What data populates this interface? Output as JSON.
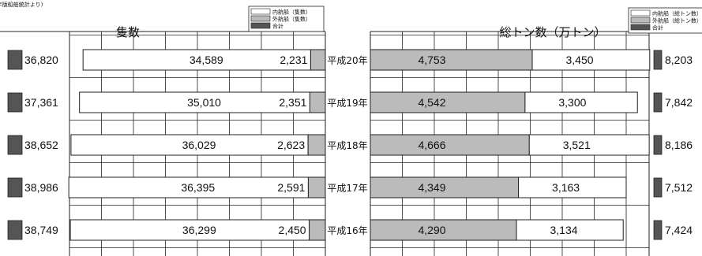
{
  "header": {
    "caption": "(各年版船舶統計より)"
  },
  "chart_data": [
    {
      "type": "bar",
      "title": "隻数",
      "legend": [
        "内航船（隻数）",
        "外航船（隻数）",
        "合計"
      ],
      "categories": [
        "平成20年",
        "平成19年",
        "平成18年",
        "平成17年",
        "平成16年"
      ],
      "series": [
        {
          "name": "内航船（隻数）",
          "values": [
            34589,
            35010,
            36029,
            36395,
            36299
          ],
          "color": "#ffffff"
        },
        {
          "name": "外航船（隻数）",
          "values": [
            2231,
            2351,
            2623,
            2591,
            2450
          ],
          "color": "#bbbbbb"
        },
        {
          "name": "合計",
          "values": [
            36820,
            37361,
            38652,
            38986,
            38749
          ],
          "color": "#555555"
        }
      ],
      "labels": {
        "domestic": [
          "34,589",
          "35,010",
          "36,029",
          "36,395",
          "36,299"
        ],
        "foreign": [
          "2,231",
          "2,351",
          "2,623",
          "2,591",
          "2,450"
        ],
        "total": [
          "36,820",
          "37,361",
          "38,652",
          "38,986",
          "38,749"
        ]
      }
    },
    {
      "type": "bar",
      "title": "総トン数（万トン）",
      "legend": [
        "内航船（総トン数）",
        "外航船（総トン数）",
        "合計"
      ],
      "categories": [
        "平成20年",
        "平成19年",
        "平成18年",
        "平成17年",
        "平成16年"
      ],
      "series": [
        {
          "name": "外航船（総トン数）",
          "values": [
            4753,
            4542,
            4666,
            4349,
            4290
          ],
          "color": "#bbbbbb"
        },
        {
          "name": "内航船（総トン数）",
          "values": [
            3450,
            3300,
            3521,
            3163,
            3134
          ],
          "color": "#ffffff"
        },
        {
          "name": "合計",
          "values": [
            8203,
            7842,
            8186,
            7512,
            7424
          ],
          "color": "#555555"
        }
      ],
      "labels": {
        "foreign": [
          "4,753",
          "4,542",
          "4,666",
          "4,349",
          "4,290"
        ],
        "domestic": [
          "3,450",
          "3,300",
          "3,521",
          "3,163",
          "3,134"
        ],
        "total": [
          "8,203",
          "7,842",
          "8,186",
          "7,512",
          "7,424"
        ]
      }
    }
  ]
}
